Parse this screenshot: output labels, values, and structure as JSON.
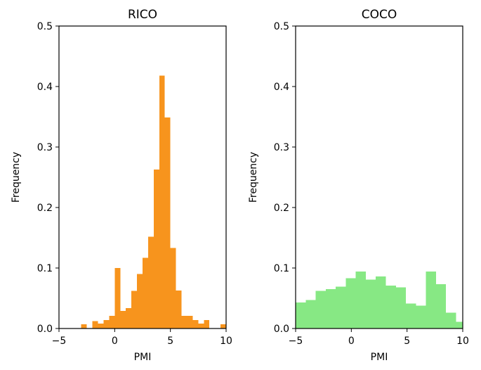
{
  "chart_data": [
    {
      "type": "bar",
      "title": "RICO",
      "xlabel": "PMI",
      "ylabel": "Frequency",
      "xlim": [
        -5,
        10
      ],
      "ylim": [
        0,
        0.5
      ],
      "xticks": [
        "−5",
        "0",
        "5",
        "10"
      ],
      "yticks": [
        "0.0",
        "0.1",
        "0.2",
        "0.3",
        "0.4",
        "0.5"
      ],
      "color": "#f7941d",
      "bin_edges": [
        -3.0,
        -2.5,
        -2.0,
        -1.5,
        -1.0,
        -0.5,
        0.0,
        0.5,
        1.0,
        1.5,
        2.0,
        2.5,
        3.0,
        3.5,
        4.0,
        4.5,
        5.0,
        5.5,
        6.0,
        6.5,
        7.0,
        7.5,
        8.0,
        8.5,
        9.0,
        9.5,
        10.0
      ],
      "values": [
        0.007,
        0.0,
        0.012,
        0.008,
        0.014,
        0.021,
        0.1,
        0.029,
        0.034,
        0.062,
        0.09,
        0.117,
        0.152,
        0.263,
        0.418,
        0.349,
        0.133,
        0.063,
        0.021,
        0.021,
        0.014,
        0.008,
        0.014,
        0.0,
        0.0,
        0.007
      ]
    },
    {
      "type": "bar",
      "title": "COCO",
      "xlabel": "PMI",
      "ylabel": "Frequency",
      "xlim": [
        -5,
        10
      ],
      "ylim": [
        0,
        0.5
      ],
      "xticks": [
        "−5",
        "0",
        "5",
        "10"
      ],
      "yticks": [
        "0.0",
        "0.1",
        "0.2",
        "0.3",
        "0.4",
        "0.5"
      ],
      "color": "#87e884",
      "bin_edges": [
        -5.0,
        -4.1,
        -3.2,
        -2.3,
        -1.4,
        -0.5,
        0.4,
        1.3,
        2.2,
        3.1,
        4.0,
        4.9,
        5.8,
        6.7,
        7.6,
        8.5,
        9.4,
        10.0
      ],
      "values": [
        0.043,
        0.047,
        0.062,
        0.065,
        0.069,
        0.083,
        0.094,
        0.081,
        0.086,
        0.071,
        0.068,
        0.041,
        0.038,
        0.094,
        0.073,
        0.026,
        0.011
      ]
    }
  ]
}
